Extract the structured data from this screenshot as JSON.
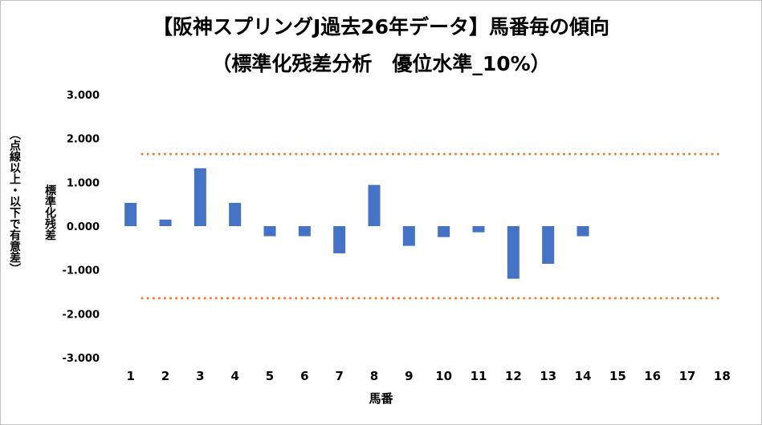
{
  "chart_data": {
    "type": "bar",
    "title": "【阪神スプリングJ過去26年データ】馬番毎の傾向",
    "subtitle": "（標準化残差分析　優位水準_10%）",
    "xlabel": "馬番",
    "ylabel_main": "標準化残差",
    "ylabel_note": "（点線以上・以下で有意差）",
    "categories": [
      "1",
      "2",
      "3",
      "4",
      "5",
      "6",
      "7",
      "8",
      "9",
      "10",
      "11",
      "12",
      "13",
      "14",
      "15",
      "16",
      "17",
      "18"
    ],
    "values": [
      0.53,
      0.15,
      1.32,
      0.53,
      -0.23,
      -0.23,
      -0.62,
      0.94,
      -0.45,
      -0.25,
      -0.14,
      -1.2,
      -0.86,
      -0.23,
      null,
      null,
      null,
      null
    ],
    "yticks": [
      "3.000",
      "2.000",
      "1.000",
      "0.000",
      "-1.000",
      "-2.000",
      "-3.000"
    ],
    "ylim": [
      -3,
      3
    ],
    "thresholds": [
      1.645,
      -1.645
    ],
    "bar_color": "#4472c4",
    "threshold_color": "#ed7d31",
    "grid": false,
    "legend": "none"
  }
}
